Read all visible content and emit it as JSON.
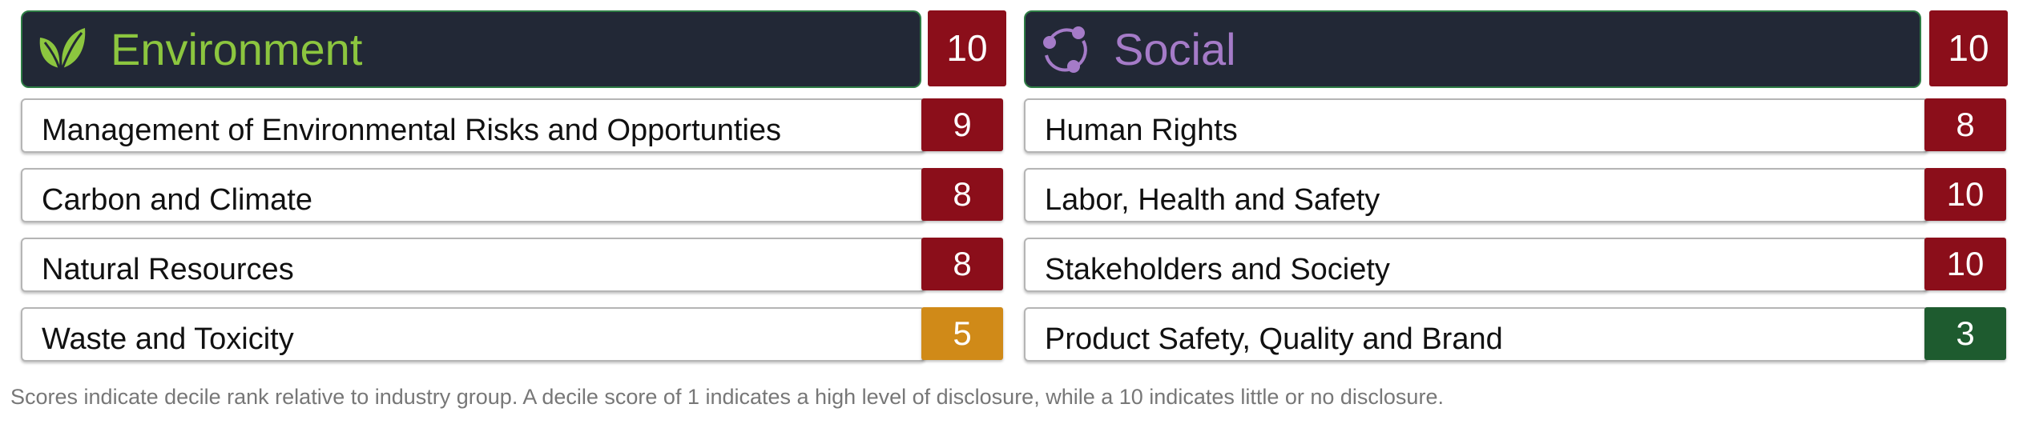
{
  "environment": {
    "title": "Environment",
    "icon": "leaf-icon",
    "score": "10",
    "score_color": "#8b0e1a",
    "items": [
      {
        "label": "Management of Environmental Risks and Opportunties",
        "score": "9",
        "color": "#8b0e1a"
      },
      {
        "label": "Carbon and Climate",
        "score": "8",
        "color": "#8b0e1a"
      },
      {
        "label": "Natural Resources",
        "score": "8",
        "color": "#8b0e1a"
      },
      {
        "label": "Waste and Toxicity",
        "score": "5",
        "color": "#d08a18"
      }
    ]
  },
  "social": {
    "title": "Social",
    "icon": "people-circle-icon",
    "score": "10",
    "score_color": "#8b0e1a",
    "items": [
      {
        "label": "Human Rights",
        "score": "8",
        "color": "#8b0e1a"
      },
      {
        "label": "Labor, Health and Safety",
        "score": "10",
        "color": "#8b0e1a"
      },
      {
        "label": "Stakeholders and Society",
        "score": "10",
        "color": "#8b0e1a"
      },
      {
        "label": "Product Safety, Quality and Brand",
        "score": "3",
        "color": "#1e5b2f"
      }
    ]
  },
  "footnote": "Scores indicate decile rank relative to industry group. A decile score of 1 indicates a high level of disclosure, while a 10 indicates little or no disclosure."
}
